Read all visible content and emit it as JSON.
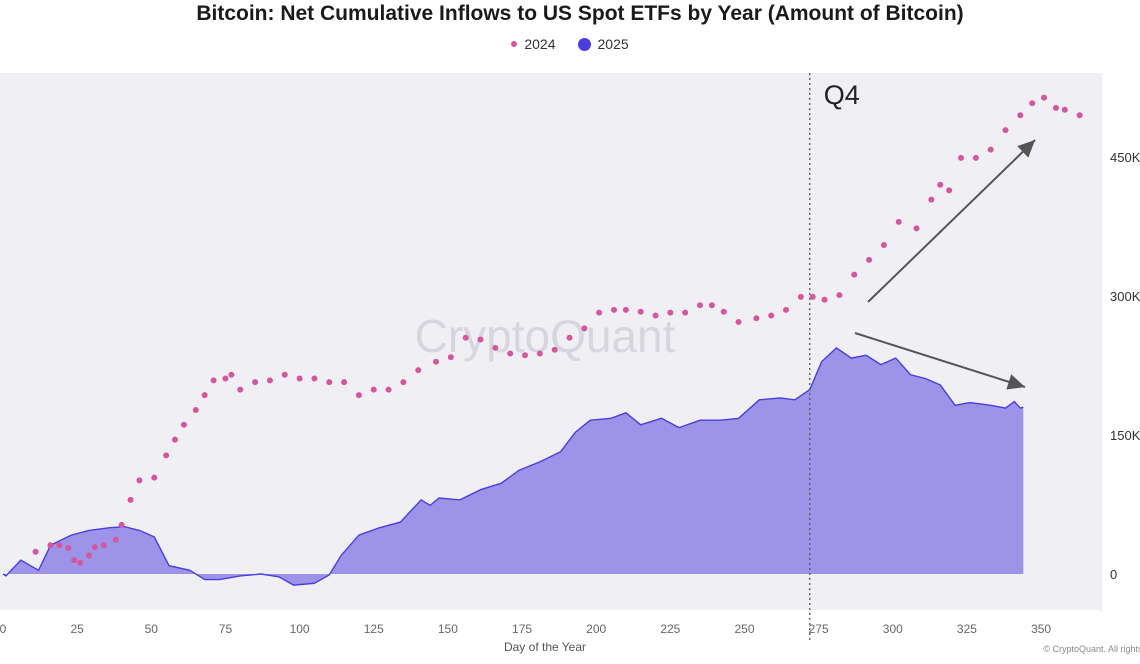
{
  "chart_data": {
    "type": "scatter+area",
    "title": "Bitcoin: Net Cumulative Inflows to US Spot ETFs by Year (Amount of Bitcoin)",
    "xlabel": "Day of the Year",
    "ylabel": "",
    "xlim": [
      0,
      370
    ],
    "ylim": [
      -40,
      540
    ],
    "x_ticks": [
      "0",
      "25",
      "50",
      "75",
      "100",
      "125",
      "150",
      "175",
      "200",
      "225",
      "250",
      "275",
      "300",
      "325",
      "350"
    ],
    "y_ticks": [
      {
        "value": 0,
        "label": "0"
      },
      {
        "value": 150,
        "label": "150K"
      },
      {
        "value": 300,
        "label": "300K"
      },
      {
        "value": 450,
        "label": "450K"
      }
    ],
    "watermark": "CryptoQuant",
    "annotation": {
      "label": "Q4",
      "day": 272
    },
    "legend": [
      {
        "name": "2024",
        "color": "#d4579d",
        "style": "dots"
      },
      {
        "name": "2025",
        "color": "#4a3ee0",
        "style": "area"
      }
    ],
    "series": [
      {
        "name": "2024",
        "type": "scatter",
        "color": "#d4579d",
        "x": [
          11,
          16,
          19,
          22,
          24,
          26,
          29,
          31,
          34,
          38,
          40,
          43,
          46,
          51,
          55,
          58,
          61,
          65,
          68,
          71,
          75,
          77,
          80,
          85,
          90,
          95,
          100,
          105,
          110,
          115,
          120,
          125,
          130,
          135,
          140,
          146,
          151,
          156,
          161,
          166,
          171,
          176,
          181,
          186,
          191,
          196,
          201,
          206,
          210,
          215,
          220,
          225,
          230,
          235,
          239,
          243,
          248,
          254,
          259,
          264,
          269,
          273,
          277,
          282,
          287,
          292,
          297,
          302,
          308,
          313,
          316,
          319,
          323,
          328,
          333,
          338,
          343,
          347,
          351,
          355,
          358,
          363
        ],
        "y": [
          24,
          31,
          31,
          28,
          15,
          12,
          20,
          29,
          31,
          37,
          53,
          80,
          101,
          104,
          128,
          145,
          161,
          177,
          193,
          209,
          211,
          215,
          199,
          207,
          209,
          215,
          211,
          211,
          207,
          207,
          193,
          199,
          199,
          207,
          220,
          229,
          234,
          255,
          253,
          244,
          238,
          236,
          238,
          242,
          255,
          265,
          282,
          285,
          285,
          283,
          279,
          282,
          282,
          290,
          290,
          283,
          272,
          276,
          279,
          285,
          299,
          299,
          296,
          301,
          323,
          339,
          355,
          380,
          373,
          404,
          420,
          414,
          449,
          449,
          458,
          479,
          495,
          508,
          514,
          503,
          501,
          495
        ]
      },
      {
        "name": "2025",
        "type": "area",
        "color": "#4a3ee0",
        "fill": "#9d93e8",
        "x": [
          0,
          1,
          6,
          12,
          16,
          23,
          29,
          36,
          41,
          46,
          51,
          56,
          63,
          68,
          73,
          80,
          87,
          93,
          98,
          105,
          110,
          114,
          120,
          127,
          134,
          141,
          144,
          147,
          154,
          161,
          168,
          174,
          181,
          188,
          193,
          198,
          205,
          210,
          215,
          222,
          228,
          235,
          242,
          248,
          255,
          262,
          267,
          272,
          276,
          281,
          286,
          291,
          296,
          301,
          306,
          311,
          316,
          321,
          326,
          333,
          338,
          341,
          343,
          344
        ],
        "y": [
          0,
          -2,
          15,
          4,
          31,
          42,
          47,
          50,
          51,
          47,
          40,
          9,
          4,
          -6,
          -6,
          -2,
          0,
          -3,
          -12,
          -10,
          -1,
          20,
          42,
          50,
          56,
          80,
          74,
          82,
          80,
          91,
          98,
          112,
          121,
          132,
          153,
          166,
          168,
          174,
          161,
          168,
          158,
          166,
          166,
          168,
          188,
          190,
          188,
          199,
          229,
          244,
          233,
          236,
          226,
          233,
          215,
          211,
          204,
          182,
          185,
          182,
          179,
          186,
          179,
          180
        ]
      }
    ]
  },
  "footer": {
    "copyright": "© CryptoQuant. All rights reserved"
  }
}
